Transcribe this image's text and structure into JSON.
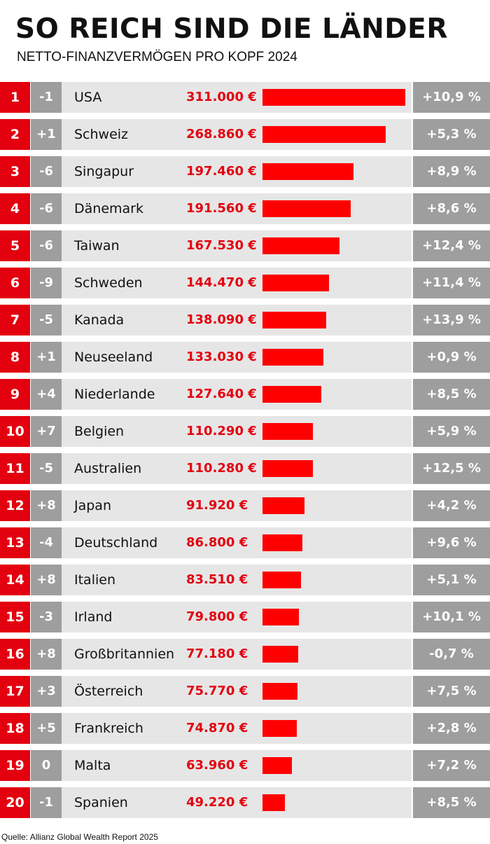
{
  "header": {
    "title": "SO REICH SIND DIE LÄNDER",
    "subtitle": "NETTO-FINANZVERMÖGEN PRO KOPF 2024"
  },
  "colors": {
    "accent": "#e3000f",
    "bar": "#ff0000",
    "gray": "#9e9e9e",
    "band": "#e6e6e6"
  },
  "chart_data": {
    "type": "bar",
    "orientation": "horizontal",
    "title": "SO REICH SIND DIE LÄNDER",
    "subtitle": "NETTO-FINANZVERMÖGEN PRO KOPF 2024",
    "xlim": [
      0,
      311000
    ],
    "rows": [
      {
        "rank": "1",
        "change": "-1",
        "country": "USA",
        "value_label": "311.000 €",
        "value": 311000,
        "growth": "+10,9 %"
      },
      {
        "rank": "2",
        "change": "+1",
        "country": "Schweiz",
        "value_label": "268.860 €",
        "value": 268860,
        "growth": "+5,3 %"
      },
      {
        "rank": "3",
        "change": "-6",
        "country": "Singapur",
        "value_label": "197.460 €",
        "value": 197460,
        "growth": "+8,9 %"
      },
      {
        "rank": "4",
        "change": "-6",
        "country": "Dänemark",
        "value_label": "191.560 €",
        "value": 191560,
        "growth": "+8,6 %"
      },
      {
        "rank": "5",
        "change": "-6",
        "country": "Taiwan",
        "value_label": "167.530 €",
        "value": 167530,
        "growth": "+12,4 %"
      },
      {
        "rank": "6",
        "change": "-9",
        "country": "Schweden",
        "value_label": "144.470 €",
        "value": 144470,
        "growth": "+11,4 %"
      },
      {
        "rank": "7",
        "change": "-5",
        "country": "Kanada",
        "value_label": "138.090 €",
        "value": 138090,
        "growth": "+13,9 %"
      },
      {
        "rank": "8",
        "change": "+1",
        "country": "Neuseeland",
        "value_label": "133.030 €",
        "value": 133030,
        "growth": "+0,9 %"
      },
      {
        "rank": "9",
        "change": "+4",
        "country": "Niederlande",
        "value_label": "127.640 €",
        "value": 127640,
        "growth": "+8,5 %"
      },
      {
        "rank": "10",
        "change": "+7",
        "country": "Belgien",
        "value_label": "110.290 €",
        "value": 110290,
        "growth": "+5,9 %"
      },
      {
        "rank": "11",
        "change": "-5",
        "country": "Australien",
        "value_label": "110.280 €",
        "value": 110280,
        "growth": "+12,5 %"
      },
      {
        "rank": "12",
        "change": "+8",
        "country": "Japan",
        "value_label": "91.920 €",
        "value": 91920,
        "growth": "+4,2 %"
      },
      {
        "rank": "13",
        "change": "-4",
        "country": "Deutschland",
        "value_label": "86.800 €",
        "value": 86800,
        "growth": "+9,6 %"
      },
      {
        "rank": "14",
        "change": "+8",
        "country": "Italien",
        "value_label": "83.510 €",
        "value": 83510,
        "growth": "+5,1 %"
      },
      {
        "rank": "15",
        "change": "-3",
        "country": "Irland",
        "value_label": "79.800 €",
        "value": 79800,
        "growth": "+10,1 %"
      },
      {
        "rank": "16",
        "change": "+8",
        "country": "Großbritannien",
        "value_label": "77.180 €",
        "value": 77180,
        "growth": "-0,7 %"
      },
      {
        "rank": "17",
        "change": "+3",
        "country": "Österreich",
        "value_label": "75.770 €",
        "value": 75770,
        "growth": "+7,5 %"
      },
      {
        "rank": "18",
        "change": "+5",
        "country": "Frankreich",
        "value_label": "74.870 €",
        "value": 74870,
        "growth": "+2,8 %"
      },
      {
        "rank": "19",
        "change": "0",
        "country": "Malta",
        "value_label": "63.960 €",
        "value": 63960,
        "growth": "+7,2 %"
      },
      {
        "rank": "20",
        "change": "-1",
        "country": "Spanien",
        "value_label": "49.220 €",
        "value": 49220,
        "growth": "+8,5 %"
      }
    ]
  },
  "footer": {
    "source": "Quelle: Allianz Global Wealth Report 2025"
  }
}
